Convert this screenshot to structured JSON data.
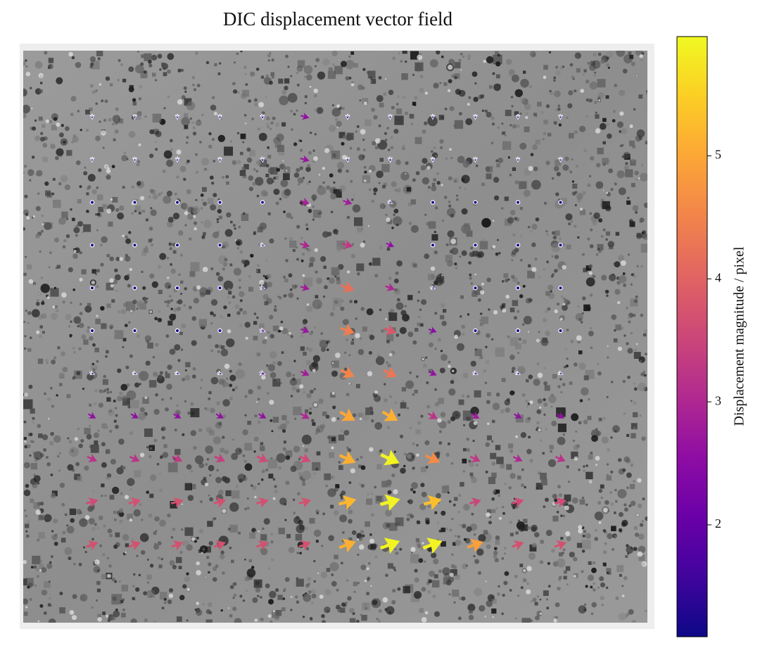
{
  "chart_data": {
    "type": "quiver",
    "title": "DIC displacement vector field",
    "colorbar_label": "Displacement magnitude / pixel",
    "colormap": "plasma",
    "clim": [
      1.09,
      5.97
    ],
    "cticks": [
      2,
      3,
      4,
      5
    ],
    "magnitude": [
      [
        1.5,
        1.5,
        1.5,
        1.5,
        1.6,
        2.6,
        1.6,
        1.5,
        1.5,
        1.5,
        1.5,
        1.5
      ],
      [
        1.5,
        1.5,
        1.5,
        1.5,
        1.6,
        2.7,
        1.6,
        1.6,
        1.5,
        1.5,
        1.5,
        1.5
      ],
      [
        1.1,
        1.1,
        1.1,
        1.2,
        1.4,
        2.9,
        2.8,
        1.5,
        1.1,
        1.1,
        1.1,
        1.1
      ],
      [
        1.1,
        1.1,
        1.1,
        1.2,
        1.5,
        3.0,
        3.3,
        2.6,
        1.1,
        1.1,
        1.1,
        1.1
      ],
      [
        1.1,
        1.1,
        1.1,
        1.2,
        1.6,
        2.8,
        4.2,
        3.0,
        1.5,
        1.1,
        1.1,
        1.1
      ],
      [
        1.1,
        1.1,
        1.1,
        1.3,
        1.7,
        2.7,
        4.4,
        3.8,
        2.5,
        1.2,
        1.1,
        1.1
      ],
      [
        1.5,
        1.5,
        1.5,
        1.5,
        1.8,
        2.8,
        4.5,
        4.3,
        2.6,
        1.6,
        1.5,
        1.5
      ],
      [
        2.6,
        2.6,
        2.6,
        2.6,
        2.6,
        3.0,
        5.0,
        5.1,
        3.2,
        2.8,
        2.6,
        2.6
      ],
      [
        3.2,
        3.2,
        3.3,
        3.4,
        3.6,
        3.6,
        5.1,
        5.9,
        4.6,
        3.3,
        3.0,
        3.2
      ],
      [
        3.6,
        3.7,
        3.7,
        3.7,
        3.7,
        3.7,
        5.2,
        5.9,
        5.3,
        3.5,
        3.6,
        3.6
      ],
      [
        3.7,
        3.7,
        3.7,
        3.7,
        3.7,
        3.7,
        5.1,
        5.9,
        5.9,
        4.9,
        3.7,
        3.7
      ]
    ],
    "angle": [
      [
        90,
        90,
        90,
        90,
        80,
        15,
        90,
        90,
        90,
        90,
        90,
        90
      ],
      [
        90,
        90,
        90,
        90,
        80,
        15,
        80,
        85,
        90,
        90,
        90,
        90
      ],
      [
        0,
        0,
        0,
        0,
        20,
        20,
        20,
        30,
        0,
        0,
        0,
        0
      ],
      [
        0,
        0,
        0,
        10,
        20,
        15,
        15,
        25,
        0,
        0,
        0,
        0
      ],
      [
        0,
        0,
        0,
        10,
        15,
        15,
        20,
        20,
        15,
        0,
        0,
        0
      ],
      [
        0,
        0,
        0,
        15,
        20,
        20,
        20,
        20,
        20,
        0,
        0,
        0
      ],
      [
        20,
        20,
        20,
        20,
        25,
        25,
        25,
        25,
        25,
        20,
        20,
        20
      ],
      [
        30,
        30,
        30,
        30,
        30,
        30,
        30,
        30,
        30,
        30,
        30,
        30
      ],
      [
        25,
        25,
        25,
        25,
        25,
        25,
        25,
        25,
        25,
        25,
        25,
        25
      ],
      [
        -15,
        -15,
        -15,
        -15,
        -15,
        -15,
        -15,
        -15,
        -15,
        -15,
        -15,
        -15
      ],
      [
        -20,
        -20,
        -20,
        -20,
        -20,
        -20,
        -20,
        -20,
        -20,
        -20,
        -20,
        -20
      ]
    ]
  }
}
